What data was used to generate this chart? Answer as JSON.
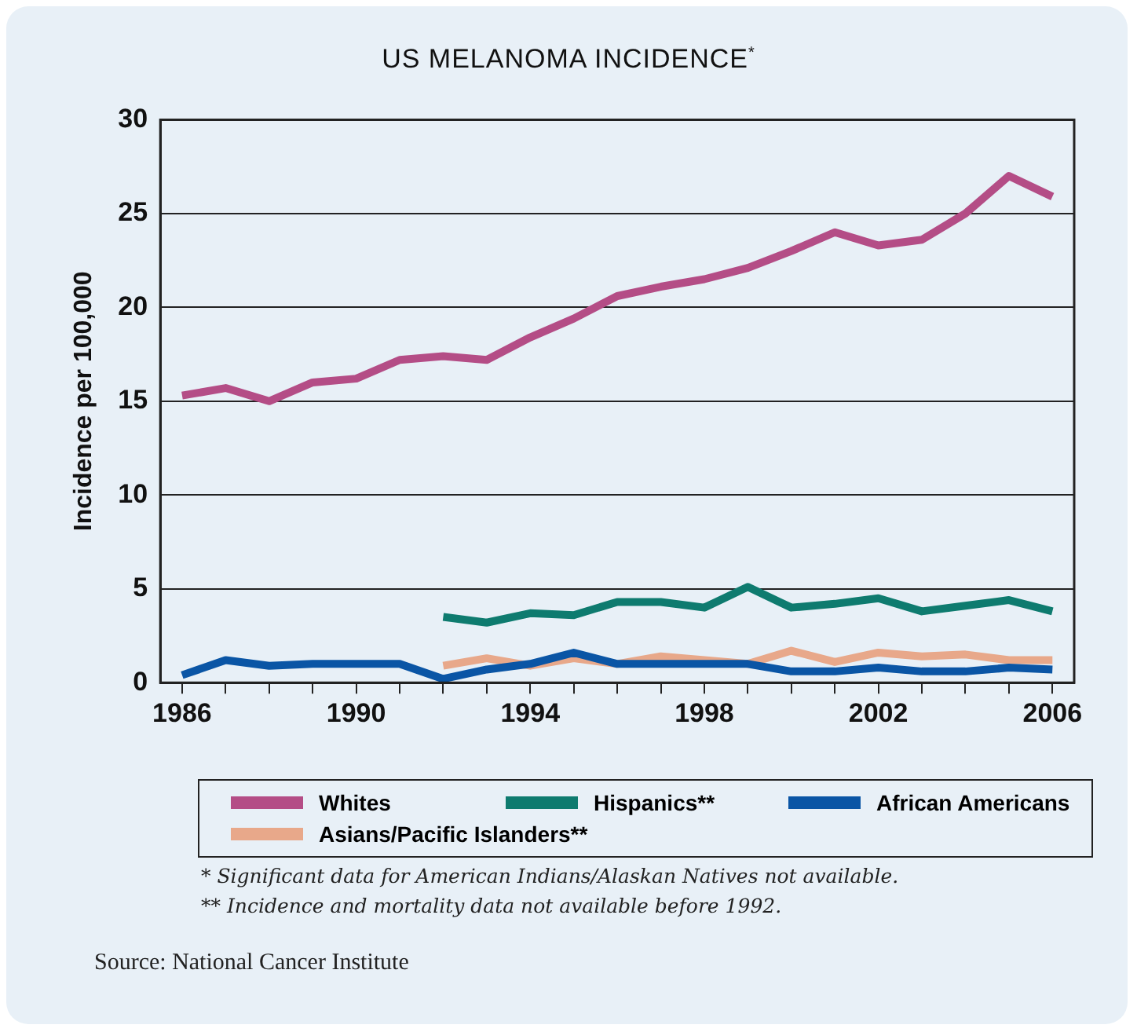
{
  "chart_data": {
    "type": "line",
    "title": "US MELANOMA INCIDENCE$^{*}$",
    "ylabel": "Incidence per 100,000",
    "x": [
      1986,
      1987,
      1988,
      1989,
      1990,
      1991,
      1992,
      1993,
      1994,
      1995,
      1996,
      1997,
      1998,
      1999,
      2000,
      2001,
      2002,
      2003,
      2004,
      2005,
      2006
    ],
    "series": [
      {
        "name": "Whites",
        "color": "#b44d86",
        "values": [
          15.3,
          15.7,
          15.0,
          16.0,
          16.2,
          17.2,
          17.4,
          17.2,
          18.4,
          19.4,
          20.6,
          21.1,
          21.5,
          22.1,
          23.0,
          24.0,
          23.3,
          23.6,
          25.0,
          27.0,
          25.9
        ]
      },
      {
        "name": "Hispanics**",
        "color": "#0e7b6f",
        "values": [
          null,
          null,
          null,
          null,
          null,
          null,
          3.5,
          3.2,
          3.7,
          3.6,
          4.3,
          4.3,
          4.0,
          5.1,
          4.0,
          4.2,
          4.5,
          3.8,
          4.1,
          4.4,
          3.8
        ]
      },
      {
        "name": "African Americans",
        "color": "#0a55a5",
        "values": [
          0.4,
          1.2,
          0.9,
          1.0,
          1.0,
          1.0,
          0.2,
          0.7,
          1.0,
          1.6,
          1.0,
          1.0,
          1.0,
          1.0,
          0.6,
          0.6,
          0.8,
          0.6,
          0.6,
          0.8,
          0.7
        ]
      },
      {
        "name": "Asians/Pacific Islanders**",
        "color": "#e8a88a",
        "values": [
          null,
          null,
          null,
          null,
          null,
          null,
          0.9,
          1.3,
          0.9,
          1.3,
          1.0,
          1.4,
          1.2,
          1.0,
          1.7,
          1.1,
          1.6,
          1.4,
          1.5,
          1.2,
          1.2
        ]
      }
    ],
    "xlim": [
      1985.5,
      2006.5
    ],
    "xticks": [
      1986,
      {
        "value": 1987,
        "label": null
      },
      {
        "value": 1988,
        "label": null
      },
      {
        "value": 1989,
        "label": null
      },
      1990,
      {
        "value": 1991,
        "label": null
      },
      {
        "value": 1992,
        "label": null
      },
      {
        "value": 1993,
        "label": null
      },
      1994,
      {
        "value": 1995,
        "label": null
      },
      {
        "value": 1996,
        "label": null
      },
      {
        "value": 1997,
        "label": null
      },
      1998,
      {
        "value": 1999,
        "label": null
      },
      {
        "value": 2000,
        "label": null
      },
      {
        "value": 2001,
        "label": null
      },
      2002,
      {
        "value": 2003,
        "label": null
      },
      {
        "value": 2004,
        "label": null
      },
      {
        "value": 2005,
        "label": null
      },
      2006
    ],
    "ylim": [
      0,
      30
    ],
    "yticks": [
      0,
      5,
      10,
      15,
      20,
      25,
      30
    ],
    "grid": "y",
    "legend": "bottom",
    "marker": "none",
    "line_style": "solid",
    "annotations": [
      "* Significant data for American Indians/Alaskan Natives not available.",
      "** Incidence and mortality data not available before 1992.",
      "Source: National Cancer Institute"
    ]
  }
}
